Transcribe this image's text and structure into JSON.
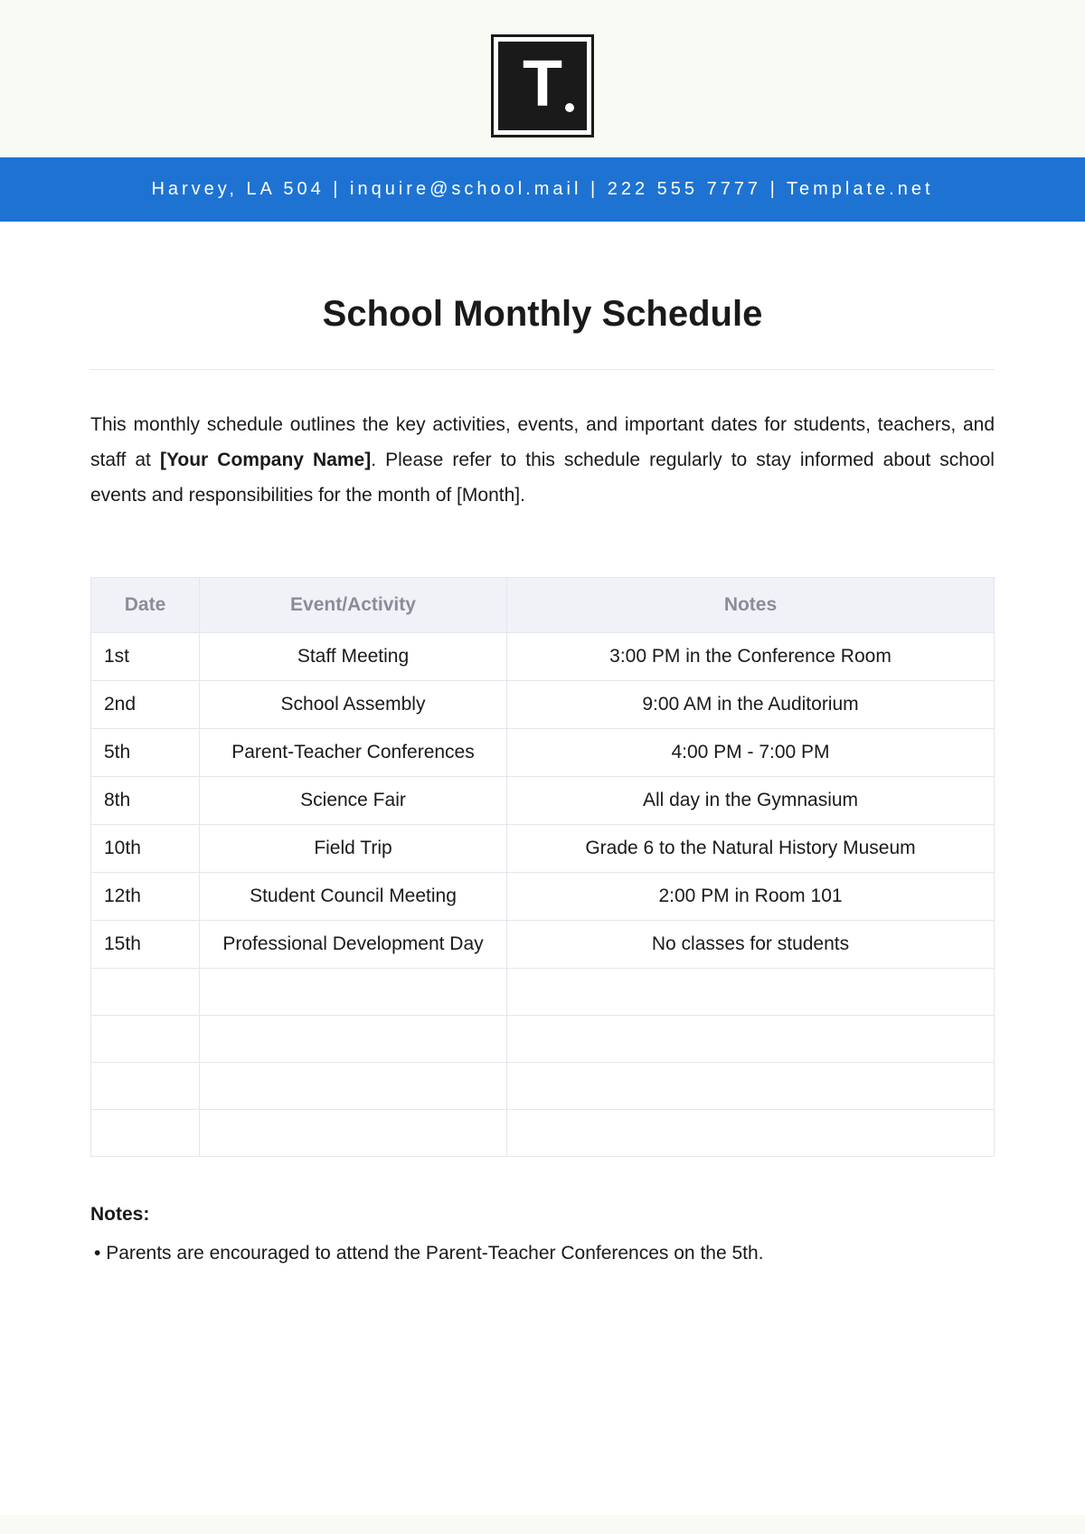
{
  "logo": {
    "letter": "T"
  },
  "header_bar": "Harvey, LA 504 | inquire@school.mail | 222 555 7777 | Template.net",
  "title": "School Monthly Schedule",
  "intro": {
    "part1": "This monthly schedule outlines the key activities, events, and important dates for students, teachers, and staff at ",
    "bold": "[Your Company Name]",
    "part2": ". Please refer to this schedule regularly to stay informed about school events and responsibilities for the month of [Month]."
  },
  "table": {
    "columns": [
      "Date",
      "Event/Activity",
      "Notes"
    ],
    "col_widths": [
      "120px",
      "340px",
      "auto"
    ],
    "header_bg": "#f1f2f8",
    "header_color": "#8a8d99",
    "border_color": "#e4e6ee",
    "font_size": 21,
    "rows": [
      [
        "1st",
        "Staff Meeting",
        "3:00 PM in the Conference Room"
      ],
      [
        "2nd",
        "School Assembly",
        "9:00 AM in the Auditorium"
      ],
      [
        "5th",
        "Parent-Teacher Conferences",
        "4:00 PM - 7:00 PM"
      ],
      [
        "8th",
        "Science Fair",
        "All day in the Gymnasium"
      ],
      [
        "10th",
        "Field Trip",
        "Grade 6 to the Natural History Museum"
      ],
      [
        "12th",
        "Student Council Meeting",
        "2:00 PM in Room 101"
      ],
      [
        "15th",
        "Professional Development Day",
        "No classes for students"
      ],
      [
        "",
        "",
        ""
      ],
      [
        "",
        "",
        ""
      ],
      [
        "",
        "",
        ""
      ],
      [
        "",
        "",
        ""
      ]
    ]
  },
  "notes": {
    "heading": "Notes:",
    "items": [
      "Parents are encouraged to attend the Parent-Teacher Conferences on the 5th."
    ]
  },
  "colors": {
    "page_bg": "#fafaf5",
    "content_bg": "#ffffff",
    "header_bar_bg": "#1e73d2",
    "header_bar_text": "#ffffff",
    "text": "#1a1a1a",
    "divider": "#e8e8e8"
  }
}
